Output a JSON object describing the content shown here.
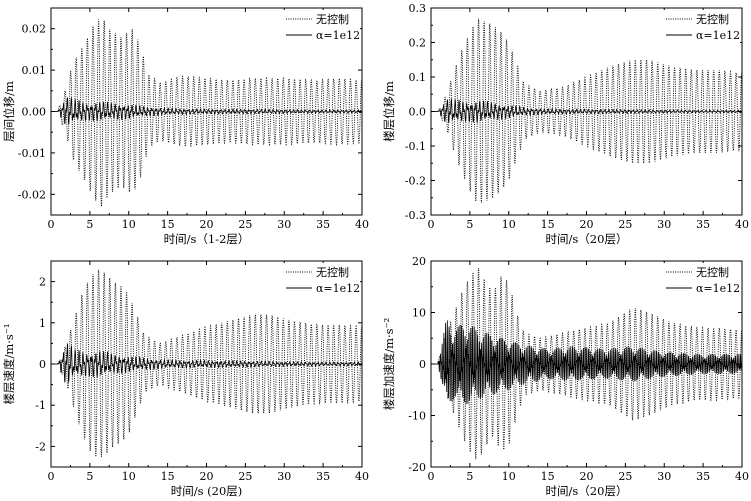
{
  "chart_data": [
    {
      "type": "line",
      "xlabel": "时间/s（1-2层）",
      "ylabel": "层间位移/m",
      "xlim": [
        0,
        40
      ],
      "ylim": [
        -0.025,
        0.025
      ],
      "xticks": [
        0,
        5,
        10,
        15,
        20,
        25,
        30,
        35,
        40
      ],
      "yticks": [
        -0.02,
        -0.01,
        0.0,
        0.01,
        0.02
      ],
      "ytick_labels": [
        "-0.02",
        "-0.01",
        "0.00",
        "0.01",
        "0.02"
      ],
      "legend_position": "top-right",
      "series": [
        {
          "name": "无控制",
          "style": "dotted",
          "envelope": [
            [
              0,
              0
            ],
            [
              1,
              0.001
            ],
            [
              2,
              0.006
            ],
            [
              2.7,
              0.011
            ],
            [
              3.5,
              0.014
            ],
            [
              4.5,
              0.017
            ],
            [
              5.5,
              0.021
            ],
            [
              6.5,
              0.023
            ],
            [
              7.5,
              0.02
            ],
            [
              9,
              0.018
            ],
            [
              10.5,
              0.02
            ],
            [
              11.5,
              0.016
            ],
            [
              12.5,
              0.009
            ],
            [
              14,
              0.007
            ],
            [
              17,
              0.0085
            ],
            [
              20,
              0.008
            ],
            [
              23,
              0.0075
            ],
            [
              26,
              0.008
            ],
            [
              30,
              0.008
            ],
            [
              34,
              0.0075
            ],
            [
              37,
              0.008
            ],
            [
              40,
              0.0075
            ]
          ]
        },
        {
          "name": "α=1e12",
          "style": "solid",
          "envelope": [
            [
              0,
              0
            ],
            [
              1,
              0.0005
            ],
            [
              2,
              0.004
            ],
            [
              3,
              0.003
            ],
            [
              5,
              0.002
            ],
            [
              6,
              0.0025
            ],
            [
              8,
              0.002
            ],
            [
              10,
              0.0018
            ],
            [
              12,
              0.0012
            ],
            [
              15,
              0.0008
            ],
            [
              20,
              0.0006
            ],
            [
              25,
              0.0006
            ],
            [
              30,
              0.0005
            ],
            [
              35,
              0.0004
            ],
            [
              40,
              0.0004
            ]
          ]
        }
      ]
    },
    {
      "type": "line",
      "xlabel": "时间/s（20层）",
      "ylabel": "楼层位移/m",
      "xlim": [
        0,
        40
      ],
      "ylim": [
        -0.3,
        0.3
      ],
      "xticks": [
        0,
        5,
        10,
        15,
        20,
        25,
        30,
        35,
        40
      ],
      "yticks": [
        -0.3,
        -0.2,
        -0.1,
        0.0,
        0.1,
        0.2,
        0.3
      ],
      "ytick_labels": [
        "-0.3",
        "-0.2",
        "-0.1",
        "0.0",
        "0.1",
        "0.2",
        "0.3"
      ],
      "legend_position": "top-right",
      "series": [
        {
          "name": "无控制",
          "style": "dotted",
          "envelope": [
            [
              0,
              0
            ],
            [
              1,
              0.005
            ],
            [
              2,
              0.05
            ],
            [
              3,
              0.12
            ],
            [
              4,
              0.18
            ],
            [
              5,
              0.23
            ],
            [
              6,
              0.27
            ],
            [
              7,
              0.26
            ],
            [
              8,
              0.25
            ],
            [
              9,
              0.23
            ],
            [
              10,
              0.2
            ],
            [
              11,
              0.14
            ],
            [
              12,
              0.08
            ],
            [
              14,
              0.06
            ],
            [
              17,
              0.07
            ],
            [
              20,
              0.1
            ],
            [
              23,
              0.13
            ],
            [
              26,
              0.15
            ],
            [
              28,
              0.15
            ],
            [
              31,
              0.13
            ],
            [
              34,
              0.12
            ],
            [
              37,
              0.12
            ],
            [
              40,
              0.11
            ]
          ]
        },
        {
          "name": "α=1e12",
          "style": "solid",
          "envelope": [
            [
              0,
              0
            ],
            [
              1,
              0.003
            ],
            [
              2,
              0.04
            ],
            [
              3,
              0.035
            ],
            [
              5,
              0.03
            ],
            [
              6,
              0.035
            ],
            [
              8,
              0.025
            ],
            [
              10,
              0.02
            ],
            [
              12,
              0.012
            ],
            [
              15,
              0.008
            ],
            [
              20,
              0.007
            ],
            [
              25,
              0.006
            ],
            [
              30,
              0.005
            ],
            [
              35,
              0.004
            ],
            [
              40,
              0.004
            ]
          ]
        }
      ]
    },
    {
      "type": "line",
      "xlabel": "时间/s (20层)",
      "ylabel": "楼层速度/m·s⁻¹",
      "xlim": [
        0,
        40
      ],
      "ylim": [
        -2.5,
        2.5
      ],
      "xticks": [
        0,
        5,
        10,
        15,
        20,
        25,
        30,
        35,
        40
      ],
      "yticks": [
        -2,
        -1,
        0,
        1,
        2
      ],
      "ytick_labels": [
        "-2",
        "-1",
        "0",
        "1",
        "2"
      ],
      "legend_position": "top-right",
      "series": [
        {
          "name": "无控制",
          "style": "dotted",
          "envelope": [
            [
              0,
              0
            ],
            [
              1,
              0.05
            ],
            [
              2,
              0.5
            ],
            [
              3,
              1.1
            ],
            [
              4,
              1.7
            ],
            [
              5,
              2.1
            ],
            [
              6,
              2.3
            ],
            [
              7,
              2.2
            ],
            [
              8,
              2.0
            ],
            [
              9,
              1.9
            ],
            [
              10,
              1.7
            ],
            [
              11,
              1.2
            ],
            [
              12,
              0.7
            ],
            [
              14,
              0.5
            ],
            [
              17,
              0.7
            ],
            [
              20,
              0.9
            ],
            [
              23,
              1.05
            ],
            [
              26,
              1.2
            ],
            [
              28,
              1.2
            ],
            [
              31,
              1.05
            ],
            [
              34,
              0.95
            ],
            [
              37,
              0.95
            ],
            [
              40,
              0.9
            ]
          ]
        },
        {
          "name": "α=1e12",
          "style": "solid",
          "envelope": [
            [
              0,
              0
            ],
            [
              1,
              0.05
            ],
            [
              2,
              0.6
            ],
            [
              3,
              0.35
            ],
            [
              5,
              0.3
            ],
            [
              6,
              0.35
            ],
            [
              8,
              0.25
            ],
            [
              10,
              0.2
            ],
            [
              12,
              0.15
            ],
            [
              15,
              0.1
            ],
            [
              20,
              0.09
            ],
            [
              25,
              0.08
            ],
            [
              30,
              0.06
            ],
            [
              35,
              0.05
            ],
            [
              40,
              0.05
            ]
          ]
        }
      ]
    },
    {
      "type": "line",
      "xlabel": "时间/s（20层）",
      "ylabel": "楼层加速度/m·s⁻²",
      "xlim": [
        0,
        40
      ],
      "ylim": [
        -20,
        20
      ],
      "xticks": [
        0,
        5,
        10,
        15,
        20,
        25,
        30,
        35,
        40
      ],
      "yticks": [
        -20,
        -10,
        0,
        10,
        20
      ],
      "ytick_labels": [
        "-20",
        "-10",
        "0",
        "10",
        "20"
      ],
      "legend_position": "top-right",
      "series": [
        {
          "name": "无控制",
          "style": "dotted",
          "envelope": [
            [
              0,
              0
            ],
            [
              1,
              1
            ],
            [
              2,
              6
            ],
            [
              3,
              10
            ],
            [
              4,
              14
            ],
            [
              5,
              17
            ],
            [
              6,
              19
            ],
            [
              7,
              16
            ],
            [
              8,
              14
            ],
            [
              9,
              17
            ],
            [
              10,
              16
            ],
            [
              11,
              10
            ],
            [
              12,
              6
            ],
            [
              14,
              5
            ],
            [
              17,
              6
            ],
            [
              20,
              7
            ],
            [
              23,
              8
            ],
            [
              26,
              11
            ],
            [
              28,
              10
            ],
            [
              31,
              8
            ],
            [
              34,
              7
            ],
            [
              37,
              7
            ],
            [
              40,
              6.5
            ]
          ]
        },
        {
          "name": "α=1e12",
          "style": "solid",
          "envelope": [
            [
              0,
              0
            ],
            [
              1,
              1
            ],
            [
              2,
              9
            ],
            [
              3,
              7
            ],
            [
              4,
              8
            ],
            [
              5,
              8
            ],
            [
              6,
              7
            ],
            [
              8,
              6
            ],
            [
              10,
              5
            ],
            [
              12,
              4
            ],
            [
              15,
              3
            ],
            [
              18,
              3.5
            ],
            [
              22,
              3
            ],
            [
              26,
              3.5
            ],
            [
              30,
              2.5
            ],
            [
              35,
              2
            ],
            [
              40,
              2
            ]
          ]
        }
      ]
    }
  ]
}
